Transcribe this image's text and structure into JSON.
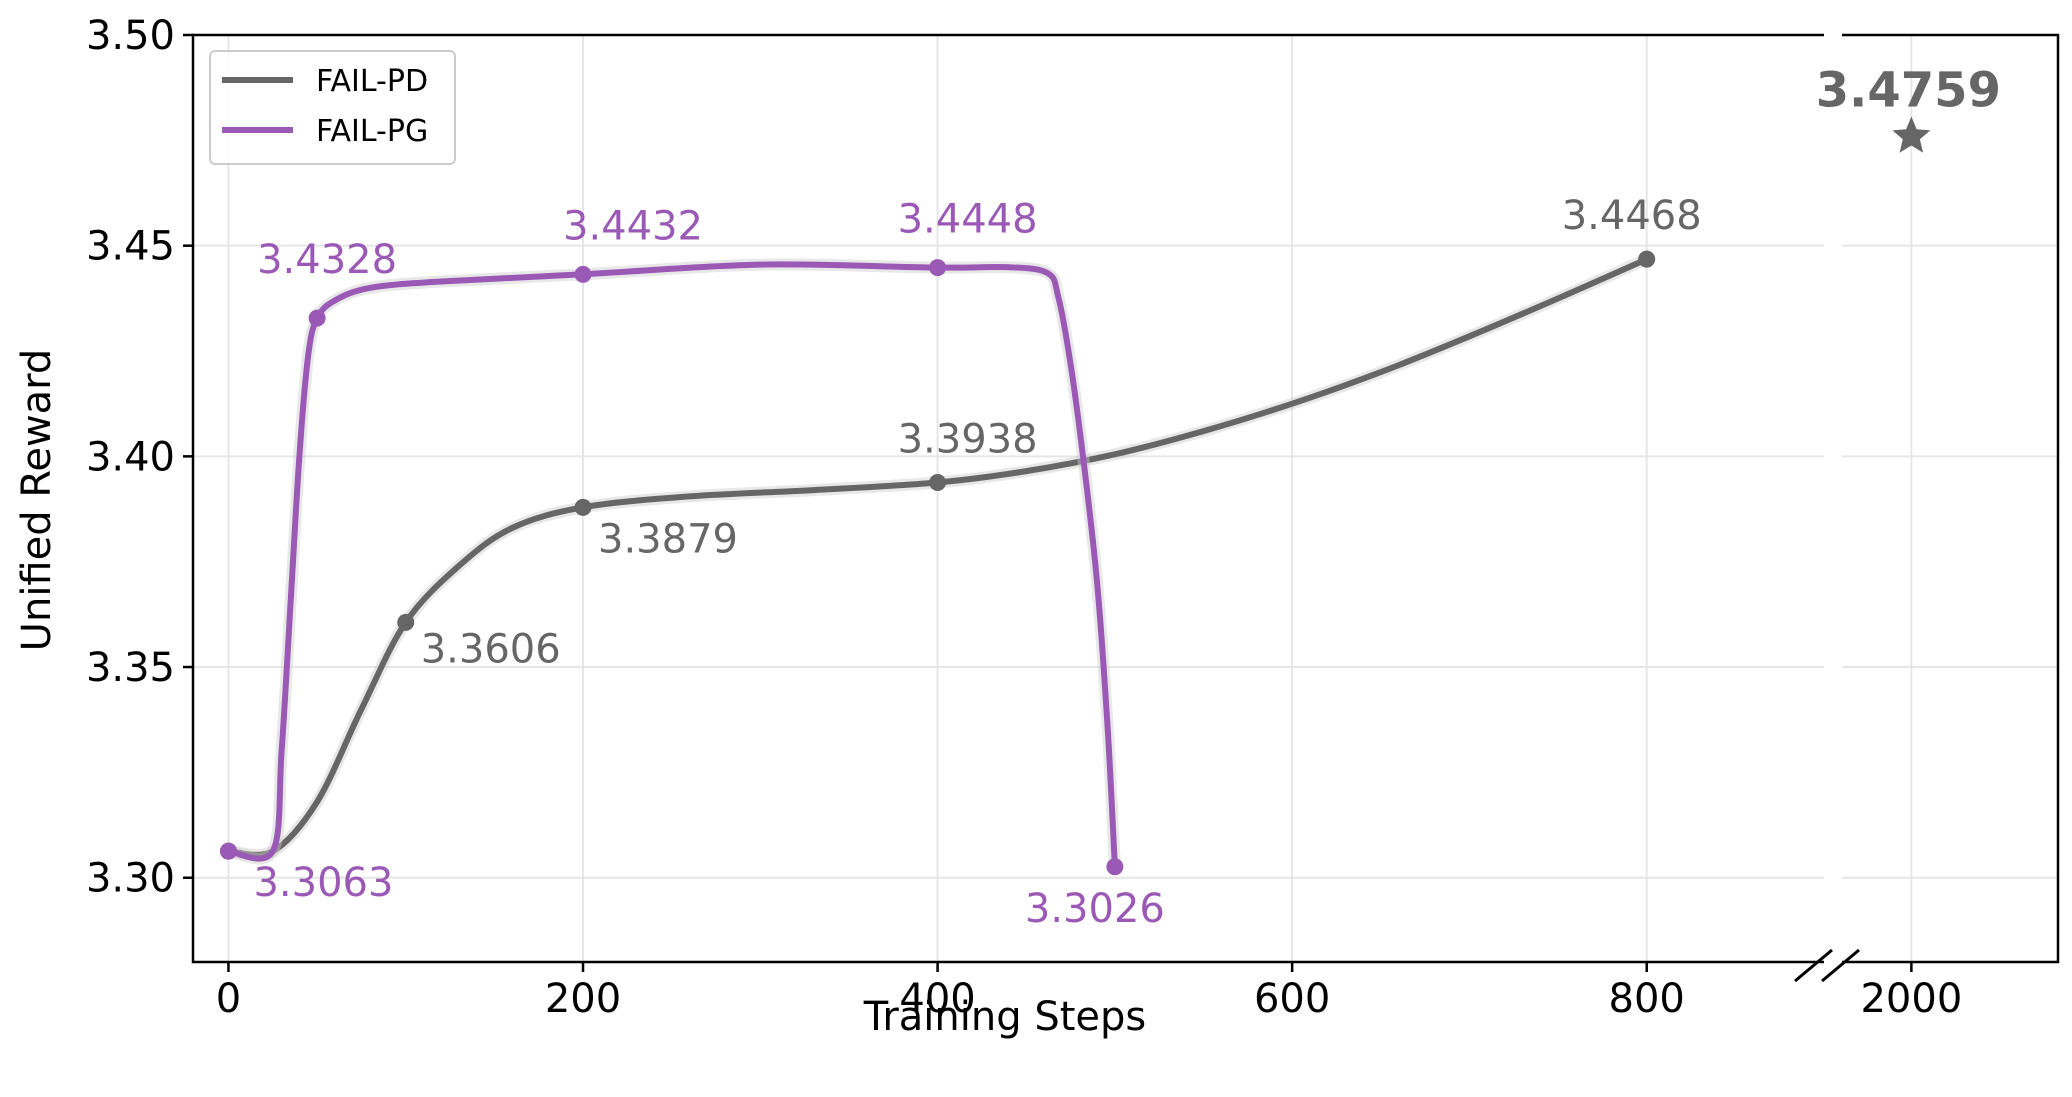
{
  "chart_data": {
    "type": "line",
    "xlabel": "Training Steps",
    "ylabel": "Unified Reward",
    "xlim": [
      -20,
      900
    ],
    "ylim": [
      3.28,
      3.5
    ],
    "grid": true,
    "legend_position": "top-left",
    "y_ticks": [
      3.3,
      3.35,
      3.4,
      3.45,
      3.5
    ],
    "x_ticks": [
      0,
      200,
      400,
      600,
      800
    ],
    "broken_axis": {
      "x_tick": 2000,
      "xlim": [
        1947,
        2112
      ]
    },
    "series": [
      {
        "name": "FAIL-PD",
        "color": "#666666",
        "points": [
          {
            "x": 0,
            "y": 3.3063
          },
          {
            "x": 100,
            "y": 3.3606,
            "label": "3.3606"
          },
          {
            "x": 200,
            "y": 3.3879,
            "label": "3.3879"
          },
          {
            "x": 400,
            "y": 3.3938,
            "label": "3.3938"
          },
          {
            "x": 800,
            "y": 3.4468,
            "label": "3.4468"
          }
        ],
        "path": [
          [
            0,
            3.3063
          ],
          [
            25,
            3.3063
          ],
          [
            50,
            3.318
          ],
          [
            75,
            3.34
          ],
          [
            100,
            3.3606
          ],
          [
            130,
            3.374
          ],
          [
            160,
            3.383
          ],
          [
            200,
            3.3879
          ],
          [
            260,
            3.3905
          ],
          [
            330,
            3.392
          ],
          [
            400,
            3.3938
          ],
          [
            450,
            3.3965
          ],
          [
            500,
            3.4005
          ],
          [
            550,
            3.406
          ],
          [
            600,
            3.4125
          ],
          [
            650,
            3.42
          ],
          [
            700,
            3.4285
          ],
          [
            750,
            3.4375
          ],
          [
            800,
            3.4468
          ]
        ]
      },
      {
        "name": "FAIL-PG",
        "color": "#9B59B6",
        "points": [
          {
            "x": 0,
            "y": 3.3063,
            "label": "3.3063"
          },
          {
            "x": 50,
            "y": 3.4328,
            "label": "3.4328"
          },
          {
            "x": 200,
            "y": 3.4432,
            "label": "3.4432"
          },
          {
            "x": 400,
            "y": 3.4448,
            "label": "3.4448"
          },
          {
            "x": 500,
            "y": 3.3026,
            "label": "3.3026"
          }
        ],
        "path": [
          [
            0,
            3.3063
          ],
          [
            25,
            3.3063
          ],
          [
            30,
            3.33
          ],
          [
            35,
            3.365
          ],
          [
            40,
            3.4
          ],
          [
            45,
            3.424
          ],
          [
            50,
            3.4328
          ],
          [
            60,
            3.437
          ],
          [
            80,
            3.44
          ],
          [
            120,
            3.4415
          ],
          [
            200,
            3.4432
          ],
          [
            300,
            3.4455
          ],
          [
            400,
            3.4448
          ],
          [
            440,
            3.4449
          ],
          [
            462,
            3.4435
          ],
          [
            468,
            3.438
          ],
          [
            475,
            3.422
          ],
          [
            482,
            3.4
          ],
          [
            490,
            3.37
          ],
          [
            496,
            3.335
          ],
          [
            500,
            3.3026
          ]
        ]
      }
    ],
    "highlight": {
      "x": 2000,
      "y": 3.4759,
      "label": "3.4759",
      "color": "#666666",
      "marker": "star"
    }
  }
}
